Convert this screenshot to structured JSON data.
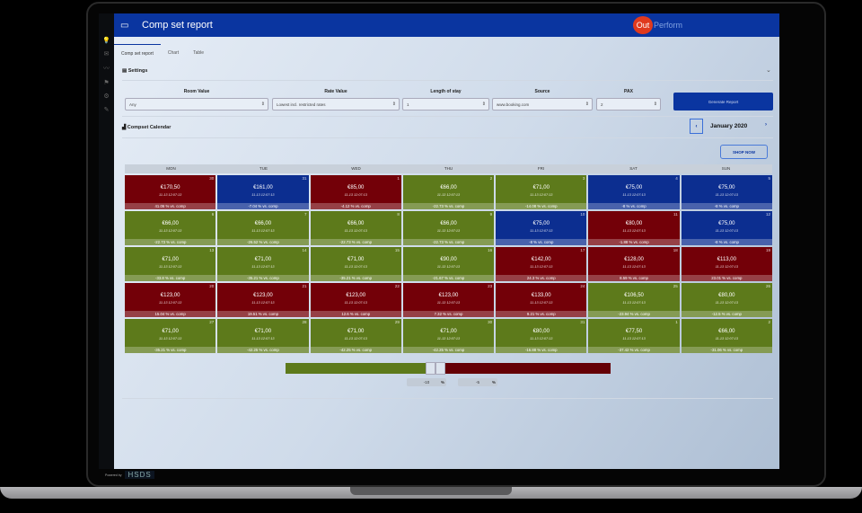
{
  "app": {
    "title": "Comp set report",
    "logo_out": "Out",
    "logo_perform": "Perform",
    "header_icon": "folder-icon"
  },
  "sidebar": {
    "icons": [
      "lightbulb-icon",
      "mail-icon",
      "chart-line-icon",
      "flag-icon",
      "gear-icon",
      "wrench-icon"
    ]
  },
  "tabs": [
    {
      "label": "Comp set report",
      "active": true
    },
    {
      "label": "Chart"
    },
    {
      "label": "Table"
    }
  ],
  "settings": {
    "title": "Settings",
    "fields": [
      {
        "label": "Room Value",
        "value": "Any"
      },
      {
        "label": "Rate Value",
        "value": "Lowest incl. restricted rates"
      },
      {
        "label": "Length of stay",
        "value": "1"
      },
      {
        "label": "Source",
        "value": "www.booking.com"
      },
      {
        "label": "PAX",
        "value": "2"
      }
    ],
    "generate_label": "Generate Report"
  },
  "calendar": {
    "title": "Compset Calendar",
    "month": "January 2020",
    "shop_now": "SHOP NOW",
    "days": [
      "MON",
      "TUE",
      "WED",
      "THU",
      "FRI",
      "SAT",
      "SUN"
    ],
    "timestamp": "11-13 12:07:13",
    "suffix": " % vs. comp",
    "colors": {
      "red": "#730008",
      "blue": "#0c2e90",
      "green": "#5d7a1b"
    },
    "cells": [
      {
        "day": "30",
        "price": "€170,50",
        "pct": "41.06",
        "color": "red"
      },
      {
        "day": "31",
        "price": "€161,00",
        "pct": "-7.04",
        "color": "blue"
      },
      {
        "day": "1",
        "price": "€85,00",
        "pct": "-4.12",
        "color": "red"
      },
      {
        "day": "2",
        "price": "€66,00",
        "pct": "-22.73",
        "color": "green"
      },
      {
        "day": "3",
        "price": "€71,00",
        "pct": "-14.08",
        "color": "green"
      },
      {
        "day": "4",
        "price": "€75,00",
        "pct": "-8",
        "color": "blue"
      },
      {
        "day": "5",
        "price": "€75,00",
        "pct": "-8",
        "color": "blue"
      },
      {
        "day": "6",
        "price": "€66,00",
        "pct": "-22.73",
        "color": "green"
      },
      {
        "day": "7",
        "price": "€66,00",
        "pct": "-26.52",
        "color": "green"
      },
      {
        "day": "8",
        "price": "€66,00",
        "pct": "-22.73",
        "color": "green"
      },
      {
        "day": "9",
        "price": "€66,00",
        "pct": "-22.73",
        "color": "green"
      },
      {
        "day": "10",
        "price": "€75,00",
        "pct": "-8",
        "color": "blue"
      },
      {
        "day": "11",
        "price": "€80,00",
        "pct": "-1.88",
        "color": "red"
      },
      {
        "day": "12",
        "price": "€75,00",
        "pct": "-8",
        "color": "blue"
      },
      {
        "day": "13",
        "price": "€71,00",
        "pct": "-33.8",
        "color": "green"
      },
      {
        "day": "14",
        "price": "€71,00",
        "pct": "-35.21",
        "color": "green"
      },
      {
        "day": "15",
        "price": "€71,00",
        "pct": "-35.21",
        "color": "green"
      },
      {
        "day": "16",
        "price": "€90,00",
        "pct": "-21.67",
        "color": "green"
      },
      {
        "day": "17",
        "price": "€142,00",
        "pct": "24.3",
        "color": "red"
      },
      {
        "day": "18",
        "price": "€128,00",
        "pct": "8.59",
        "color": "red"
      },
      {
        "day": "19",
        "price": "€113,00",
        "pct": "23.01",
        "color": "red"
      },
      {
        "day": "20",
        "price": "€123,00",
        "pct": "15.04",
        "color": "red"
      },
      {
        "day": "21",
        "price": "€123,00",
        "pct": "19.51",
        "color": "red"
      },
      {
        "day": "22",
        "price": "€123,00",
        "pct": "12.6",
        "color": "red"
      },
      {
        "day": "23",
        "price": "€123,00",
        "pct": "7.32",
        "color": "red"
      },
      {
        "day": "24",
        "price": "€133,00",
        "pct": "9.21",
        "color": "red"
      },
      {
        "day": "25",
        "price": "€106,50",
        "pct": "-23.94",
        "color": "green"
      },
      {
        "day": "26",
        "price": "€80,00",
        "pct": "-12.5",
        "color": "green"
      },
      {
        "day": "27",
        "price": "€71,00",
        "pct": "-35.21",
        "color": "green"
      },
      {
        "day": "28",
        "price": "€71,00",
        "pct": "-42.25",
        "color": "green"
      },
      {
        "day": "29",
        "price": "€71,00",
        "pct": "-42.25",
        "color": "green"
      },
      {
        "day": "30",
        "price": "€71,00",
        "pct": "-42.25",
        "color": "green"
      },
      {
        "day": "31",
        "price": "€80,00",
        "pct": "-16.88",
        "color": "green"
      },
      {
        "day": "1",
        "price": "€77,50",
        "pct": "-37.42",
        "color": "green"
      },
      {
        "day": "2",
        "price": "€66,00",
        "pct": "-31.06",
        "color": "green"
      }
    ]
  },
  "range": {
    "low": "-10",
    "high": "-5",
    "unit": "%"
  },
  "footer": {
    "powered_by": "Powered by",
    "brand": "HSDS"
  }
}
